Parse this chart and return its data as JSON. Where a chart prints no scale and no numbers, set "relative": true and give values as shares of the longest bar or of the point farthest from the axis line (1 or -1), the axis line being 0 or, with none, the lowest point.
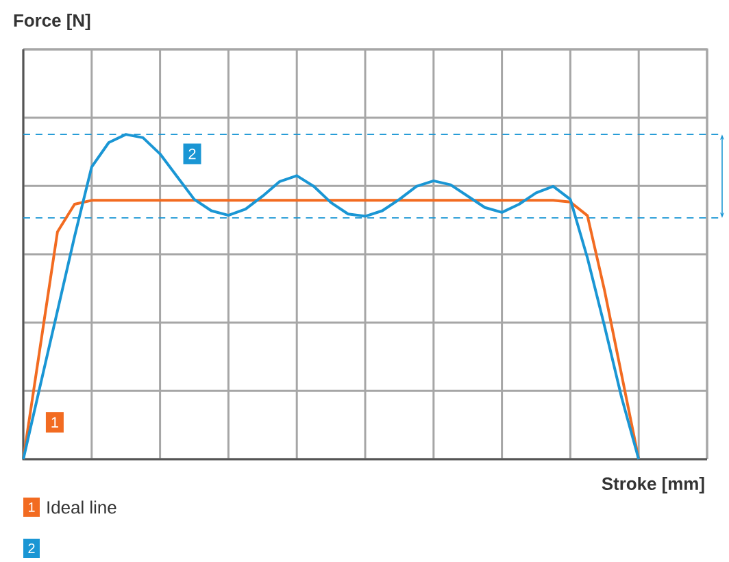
{
  "chart_data": {
    "type": "line",
    "xlabel": "Stroke [mm]",
    "relative": true,
    "grid": true,
    "legend": "bottom left",
    "marker": "none",
    "line_style": "solid",
    "categories": [
      null,
      null,
      null,
      null,
      null,
      null,
      null,
      null,
      null,
      null,
      null,
      null,
      null,
      null,
      null,
      null,
      null,
      null,
      null,
      null,
      null,
      null,
      null,
      null,
      null,
      null,
      null,
      null,
      null,
      null,
      null,
      null,
      null,
      null,
      null,
      null,
      null,
      null,
      null,
      null,
      null
    ],
    "series": [
      {
        "name": "Ideal line",
        "color": "#f26b21",
        "values": [
          0,
          0.35,
          0.7,
          0.785,
          0.797,
          0.797,
          0.797,
          0.797,
          0.797,
          0.797,
          0.797,
          0.797,
          0.797,
          0.797,
          0.797,
          0.797,
          0.797,
          0.797,
          0.797,
          0.797,
          0.797,
          0.797,
          0.797,
          0.797,
          0.797,
          0.797,
          0.797,
          0.797,
          0.797,
          0.797,
          0.797,
          0.797,
          0.792,
          0.75,
          0.52,
          0.26,
          0,
          null,
          null,
          null,
          null
        ]
      },
      {
        "color": "#1a96d4",
        "values": [
          0,
          0.229,
          0.457,
          0.686,
          0.9,
          0.975,
          1.0,
          0.99,
          0.94,
          0.87,
          0.8,
          0.765,
          0.751,
          0.77,
          0.81,
          0.855,
          0.873,
          0.84,
          0.79,
          0.755,
          0.748,
          0.765,
          0.8,
          0.84,
          0.857,
          0.845,
          0.81,
          0.775,
          0.76,
          0.785,
          0.82,
          0.84,
          0.8,
          0.62,
          0.41,
          0.19,
          0,
          null,
          null,
          null,
          null
        ]
      }
    ],
    "ref_lines": [
      {
        "axis": "y",
        "value": 1.0,
        "color": "#1a96d4",
        "line_style": "dashed"
      },
      {
        "axis": "y",
        "value": 0.743,
        "color": "#1a96d4",
        "line_style": "dashed"
      }
    ],
    "annotations": [
      "1",
      "2",
      "Force [N]"
    ]
  }
}
